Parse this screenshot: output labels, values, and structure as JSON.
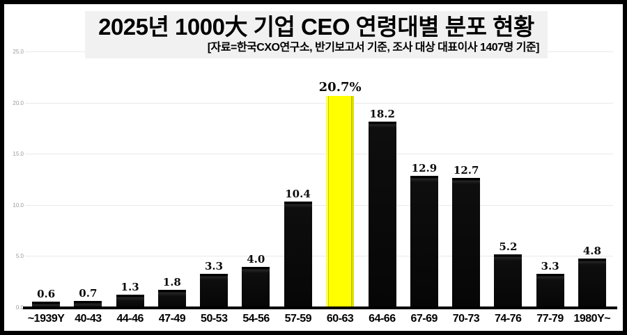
{
  "chart_data": {
    "type": "bar",
    "title": "2025년 1000大 기업 CEO 연령대별 분포 현황",
    "subtitle": "[자료=한국CXO연구소, 반기보고서 기준, 조사 대상 대표이사 1407명 기준]",
    "categories": [
      "~1939Y",
      "40-43",
      "44-46",
      "47-49",
      "50-53",
      "54-56",
      "57-59",
      "60-63",
      "64-66",
      "67-69",
      "70-73",
      "74-76",
      "77-79",
      "1980Y~"
    ],
    "values": [
      0.6,
      0.7,
      1.3,
      1.8,
      3.3,
      4.0,
      10.4,
      20.7,
      18.2,
      12.9,
      12.7,
      5.2,
      3.3,
      4.8
    ],
    "value_labels": [
      "0.6",
      "0.7",
      "1.3",
      "1.8",
      "3.3",
      "4.0",
      "10.4",
      "20.7%",
      "18.2",
      "12.9",
      "12.7",
      "5.2",
      "3.3",
      "4.8"
    ],
    "highlight_index": 7,
    "highlight_color": "#ffff00",
    "bar_color": "#0a0a0a",
    "xlabel": "",
    "ylabel": "",
    "ylim": [
      0,
      25
    ],
    "y_ticks": [
      "0.0",
      "5.0",
      "10.0",
      "15.0",
      "20.0",
      "25.0"
    ],
    "y_tick_values": [
      0,
      5,
      10,
      15,
      20,
      25
    ],
    "grid": true,
    "legend": "none",
    "title_box_background": "#f1f1f1",
    "frame_color": "#000000"
  }
}
